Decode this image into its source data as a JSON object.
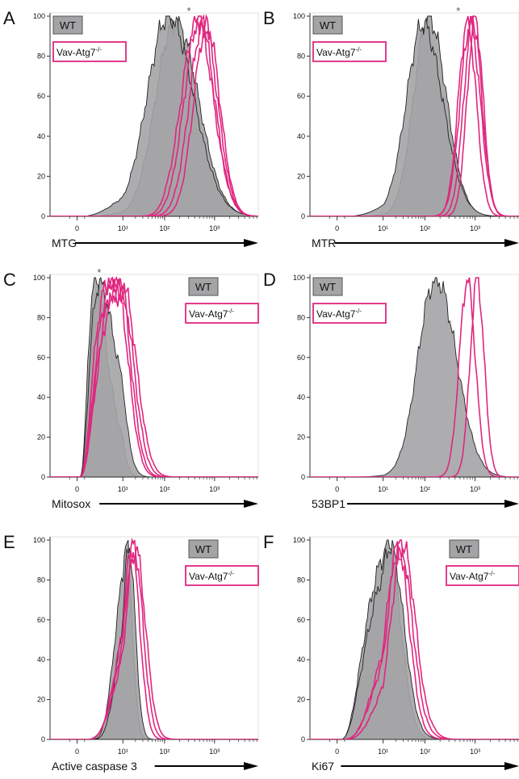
{
  "colors": {
    "wt_fill": "#a4a4a6",
    "wt_stroke": "#222222",
    "ko_stroke": "#e0267f",
    "axis": "#333333",
    "text": "#111111"
  },
  "legend": {
    "wt": "WT",
    "ko_base": "Vav-Atg7",
    "ko_sup": "-/-"
  },
  "chart_data": [
    {
      "id": "A",
      "type": "histogram",
      "panel_label": "A",
      "xlabel": "MTG",
      "xscale": "biexponential",
      "xticks": [
        "0",
        "10¹",
        "10²",
        "10³"
      ],
      "ylim": [
        0,
        100
      ],
      "yticks": [
        "0",
        "20",
        "40",
        "60",
        "80",
        "100"
      ],
      "legend_position": "top-left",
      "asterisk": true,
      "series": [
        {
          "group": "WT",
          "peak": 170,
          "width": 0.45,
          "height": 97
        },
        {
          "group": "WT",
          "peak": 120,
          "width": 0.5,
          "height": 100
        },
        {
          "group": "Vav-Atg7-/-",
          "peak": 600,
          "width": 0.28,
          "height": 97
        },
        {
          "group": "Vav-Atg7-/-",
          "peak": 500,
          "width": 0.3,
          "height": 99
        },
        {
          "group": "Vav-Atg7-/-",
          "peak": 700,
          "width": 0.26,
          "height": 96
        },
        {
          "group": "Vav-Atg7-/-",
          "peak": 450,
          "width": 0.32,
          "height": 98
        }
      ]
    },
    {
      "id": "B",
      "type": "histogram",
      "panel_label": "B",
      "xlabel": "MTR",
      "xscale": "biexponential",
      "xticks": [
        "0",
        "10¹",
        "10²",
        "10³"
      ],
      "ylim": [
        0,
        100
      ],
      "yticks": [
        "0",
        "20",
        "40",
        "60",
        "80",
        "100"
      ],
      "legend_position": "top-left",
      "asterisk": true,
      "series": [
        {
          "group": "WT",
          "peak": 120,
          "width": 0.35,
          "height": 99
        },
        {
          "group": "WT",
          "peak": 90,
          "width": 0.4,
          "height": 96
        },
        {
          "group": "Vav-Atg7-/-",
          "peak": 900,
          "width": 0.18,
          "height": 98
        },
        {
          "group": "Vav-Atg7-/-",
          "peak": 700,
          "width": 0.18,
          "height": 97
        },
        {
          "group": "Vav-Atg7-/-",
          "peak": 1000,
          "width": 0.16,
          "height": 99
        },
        {
          "group": "Vav-Atg7-/-",
          "peak": 800,
          "width": 0.2,
          "height": 96
        }
      ]
    },
    {
      "id": "C",
      "type": "histogram",
      "panel_label": "C",
      "xlabel": "Mitosox",
      "xscale": "biexponential",
      "xticks": [
        "0",
        "10¹",
        "10²",
        "10³"
      ],
      "ylim": [
        0,
        100
      ],
      "yticks": [
        "0",
        "20",
        "40",
        "60",
        "80",
        "100"
      ],
      "legend_position": "top-right",
      "asterisk": true,
      "series": [
        {
          "group": "WT",
          "peak": 4,
          "width": 0.22,
          "height": 100
        },
        {
          "group": "WT",
          "peak": 5,
          "width": 0.25,
          "height": 97
        },
        {
          "group": "Vav-Atg7-/-",
          "peak": 8,
          "width": 0.28,
          "height": 98
        },
        {
          "group": "Vav-Atg7-/-",
          "peak": 9,
          "width": 0.3,
          "height": 95
        },
        {
          "group": "Vav-Atg7-/-",
          "peak": 7,
          "width": 0.28,
          "height": 97
        },
        {
          "group": "Vav-Atg7-/-",
          "peak": 10,
          "width": 0.32,
          "height": 96
        }
      ]
    },
    {
      "id": "D",
      "type": "histogram",
      "panel_label": "D",
      "xlabel": "53BP1",
      "xscale": "biexponential",
      "xticks": [
        "0",
        "10¹",
        "10²",
        "10³"
      ],
      "ylim": [
        0,
        100
      ],
      "yticks": [
        "0",
        "20",
        "40",
        "60",
        "80",
        "100"
      ],
      "legend_position": "top-left",
      "asterisk": false,
      "series": [
        {
          "group": "WT",
          "peak": 170,
          "width": 0.4,
          "height": 99
        },
        {
          "group": "Vav-Atg7-/-",
          "peak": 700,
          "width": 0.16,
          "height": 99
        },
        {
          "group": "Vav-Atg7-/-",
          "peak": 1100,
          "width": 0.14,
          "height": 99
        }
      ]
    },
    {
      "id": "E",
      "type": "histogram",
      "panel_label": "E",
      "xlabel": "Active caspase 3",
      "xscale": "biexponential",
      "xticks": [
        "0",
        "10¹",
        "10²",
        "10³"
      ],
      "ylim": [
        0,
        100
      ],
      "yticks": [
        "0",
        "20",
        "40",
        "60",
        "80",
        "100"
      ],
      "legend_position": "top-right",
      "asterisk": false,
      "series": [
        {
          "group": "WT",
          "peak": 12,
          "width": 0.14,
          "height": 99
        },
        {
          "group": "WT",
          "peak": 14,
          "width": 0.15,
          "height": 97
        },
        {
          "group": "Vav-Atg7-/-",
          "peak": 18,
          "width": 0.22,
          "height": 98
        },
        {
          "group": "Vav-Atg7-/-",
          "peak": 20,
          "width": 0.24,
          "height": 96
        },
        {
          "group": "Vav-Atg7-/-",
          "peak": 16,
          "width": 0.2,
          "height": 95
        }
      ]
    },
    {
      "id": "F",
      "type": "histogram",
      "panel_label": "F",
      "xlabel": "Ki67",
      "xscale": "biexponential",
      "xticks": [
        "0",
        "10¹",
        "10²",
        "10³"
      ],
      "ylim": [
        0,
        100
      ],
      "yticks": [
        "0",
        "20",
        "40",
        "60",
        "80",
        "100"
      ],
      "legend_position": "top-right",
      "asterisk": false,
      "series": [
        {
          "group": "WT",
          "peak": 13,
          "width": 0.3,
          "height": 99
        },
        {
          "group": "WT",
          "peak": 15,
          "width": 0.32,
          "height": 97
        },
        {
          "group": "Vav-Atg7-/-",
          "peak": 25,
          "width": 0.3,
          "height": 98
        },
        {
          "group": "Vav-Atg7-/-",
          "peak": 30,
          "width": 0.3,
          "height": 97
        },
        {
          "group": "Vav-Atg7-/-",
          "peak": 22,
          "width": 0.28,
          "height": 96
        }
      ]
    }
  ]
}
